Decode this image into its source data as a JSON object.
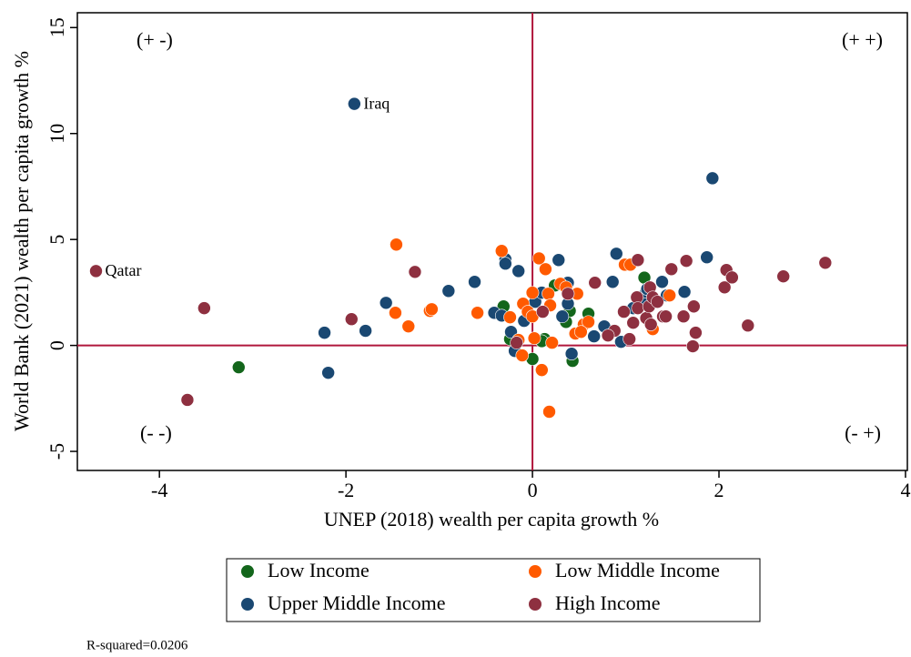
{
  "chart_data": {
    "type": "scatter",
    "xlabel": "UNEP (2018) wealth per capita growth %",
    "ylabel": "World Bank (2021) wealth per capita growth %",
    "xlim": [
      -4.88,
      4.02
    ],
    "ylim": [
      -5.9,
      15.7
    ],
    "xticks": [
      -4,
      -2,
      0,
      2,
      4
    ],
    "yticks": [
      -5,
      0,
      5,
      10,
      15
    ],
    "reference_lines": {
      "x": 0,
      "y": 0,
      "color": "#b0173c"
    },
    "quadrant_labels": [
      "(+ -)",
      "(+ +)",
      "(- -)",
      "(- +)"
    ],
    "note": "R-squared=0.0206",
    "legend": "bottom",
    "series": [
      {
        "name": "Low Income",
        "color": "#13661b",
        "x": [
          -3.15,
          -0.31,
          -0.24,
          0,
          0.13,
          0.43,
          0.6,
          0.36,
          0.4,
          0.24,
          1.2,
          0.1
        ],
        "values": [
          -1.03,
          1.84,
          0.3,
          -0.64,
          0.3,
          -0.73,
          1.5,
          1.11,
          1.63,
          2.83,
          3.2,
          0.2
        ]
      },
      {
        "name": "Upper Middle Income",
        "color": "#1a4872",
        "x": [
          -1.91,
          -2.23,
          -2.19,
          -1.79,
          -1.57,
          -0.9,
          -0.62,
          -0.29,
          -0.29,
          -0.15,
          -0.41,
          -0.33,
          -0.23,
          -0.19,
          -0.09,
          0.03,
          0.1,
          0.28,
          0.38,
          0.32,
          0.38,
          0.42,
          0.66,
          0.77,
          0.86,
          0.9,
          1.08,
          1.18,
          1.39,
          1.44,
          1.22,
          1.63,
          1.87,
          1.93,
          1.23,
          0.95
        ],
        "values": [
          11.4,
          0.6,
          -1.29,
          0.69,
          2.01,
          2.57,
          3.0,
          4.07,
          3.86,
          3.51,
          1.54,
          1.41,
          0.64,
          -0.26,
          1.16,
          2.06,
          2.49,
          4.03,
          2.96,
          1.37,
          1.97,
          -0.39,
          0.43,
          0.9,
          3.0,
          4.33,
          1.76,
          2.06,
          3.0,
          2.36,
          2.53,
          2.53,
          4.16,
          7.89,
          2.66,
          0.17
        ],
        "labels": [
          "Iraq",
          null,
          null,
          null,
          null,
          null,
          null,
          null,
          null,
          null,
          null,
          null,
          null,
          null,
          null,
          null,
          null,
          null,
          null,
          null,
          null,
          null,
          null,
          null,
          null,
          null,
          null,
          null,
          null,
          null,
          null,
          null,
          null,
          null,
          null,
          null
        ]
      },
      {
        "name": "Low Middle Income",
        "color": "#ff5a00",
        "x": [
          -1.46,
          -1.47,
          -1.33,
          -1.1,
          -1.08,
          -0.59,
          -0.33,
          -0.1,
          -0.05,
          0,
          0,
          0.07,
          0.14,
          0.17,
          0.19,
          0.3,
          0.36,
          0.48,
          0.55,
          0.6,
          0.02,
          -0.15,
          -0.11,
          0.1,
          0.18,
          0.21,
          0.46,
          0.52,
          0.99,
          1.05,
          1.29,
          1.47,
          -0.24
        ],
        "values": [
          4.76,
          1.54,
          0.9,
          1.63,
          1.71,
          1.54,
          4.46,
          1.97,
          1.59,
          1.37,
          2.49,
          4.11,
          3.6,
          2.44,
          1.89,
          2.91,
          2.74,
          2.44,
          0.99,
          1.11,
          0.34,
          0.26,
          -0.47,
          -1.16,
          -3.13,
          0.13,
          0.56,
          0.64,
          3.81,
          3.81,
          0.77,
          2.36,
          1.33
        ]
      },
      {
        "name": "High Income",
        "color": "#8e3040",
        "x": [
          -4.68,
          -3.52,
          -3.7,
          -1.94,
          -1.26,
          -0.17,
          0.11,
          0.38,
          0.67,
          0.88,
          0.98,
          1.04,
          1.08,
          1.13,
          1.12,
          1.13,
          1.22,
          1.25,
          1.26,
          1.29,
          1.27,
          1.34,
          1.4,
          1.49,
          1.62,
          1.65,
          1.73,
          1.75,
          1.72,
          2.06,
          2.08,
          2.14,
          2.31,
          2.69,
          3.14,
          0.81,
          1.43
        ],
        "values": [
          3.51,
          1.76,
          -2.57,
          1.24,
          3.47,
          0.13,
          1.59,
          2.44,
          2.96,
          0.69,
          1.59,
          0.3,
          1.07,
          4.03,
          2.27,
          1.76,
          1.29,
          1.84,
          2.74,
          2.27,
          0.99,
          2.06,
          1.37,
          3.6,
          1.37,
          3.99,
          1.84,
          0.6,
          -0.04,
          2.74,
          3.56,
          3.21,
          0.94,
          3.26,
          3.9,
          0.47,
          1.37
        ],
        "labels": [
          "Qatar",
          null,
          null,
          null,
          null,
          null,
          null,
          null,
          null,
          null,
          null,
          null,
          null,
          null,
          null,
          null,
          null,
          null,
          null,
          null,
          null,
          null,
          null,
          null,
          null,
          null,
          null,
          null,
          null,
          null,
          null,
          null,
          null,
          null,
          null,
          null,
          null
        ]
      }
    ]
  }
}
